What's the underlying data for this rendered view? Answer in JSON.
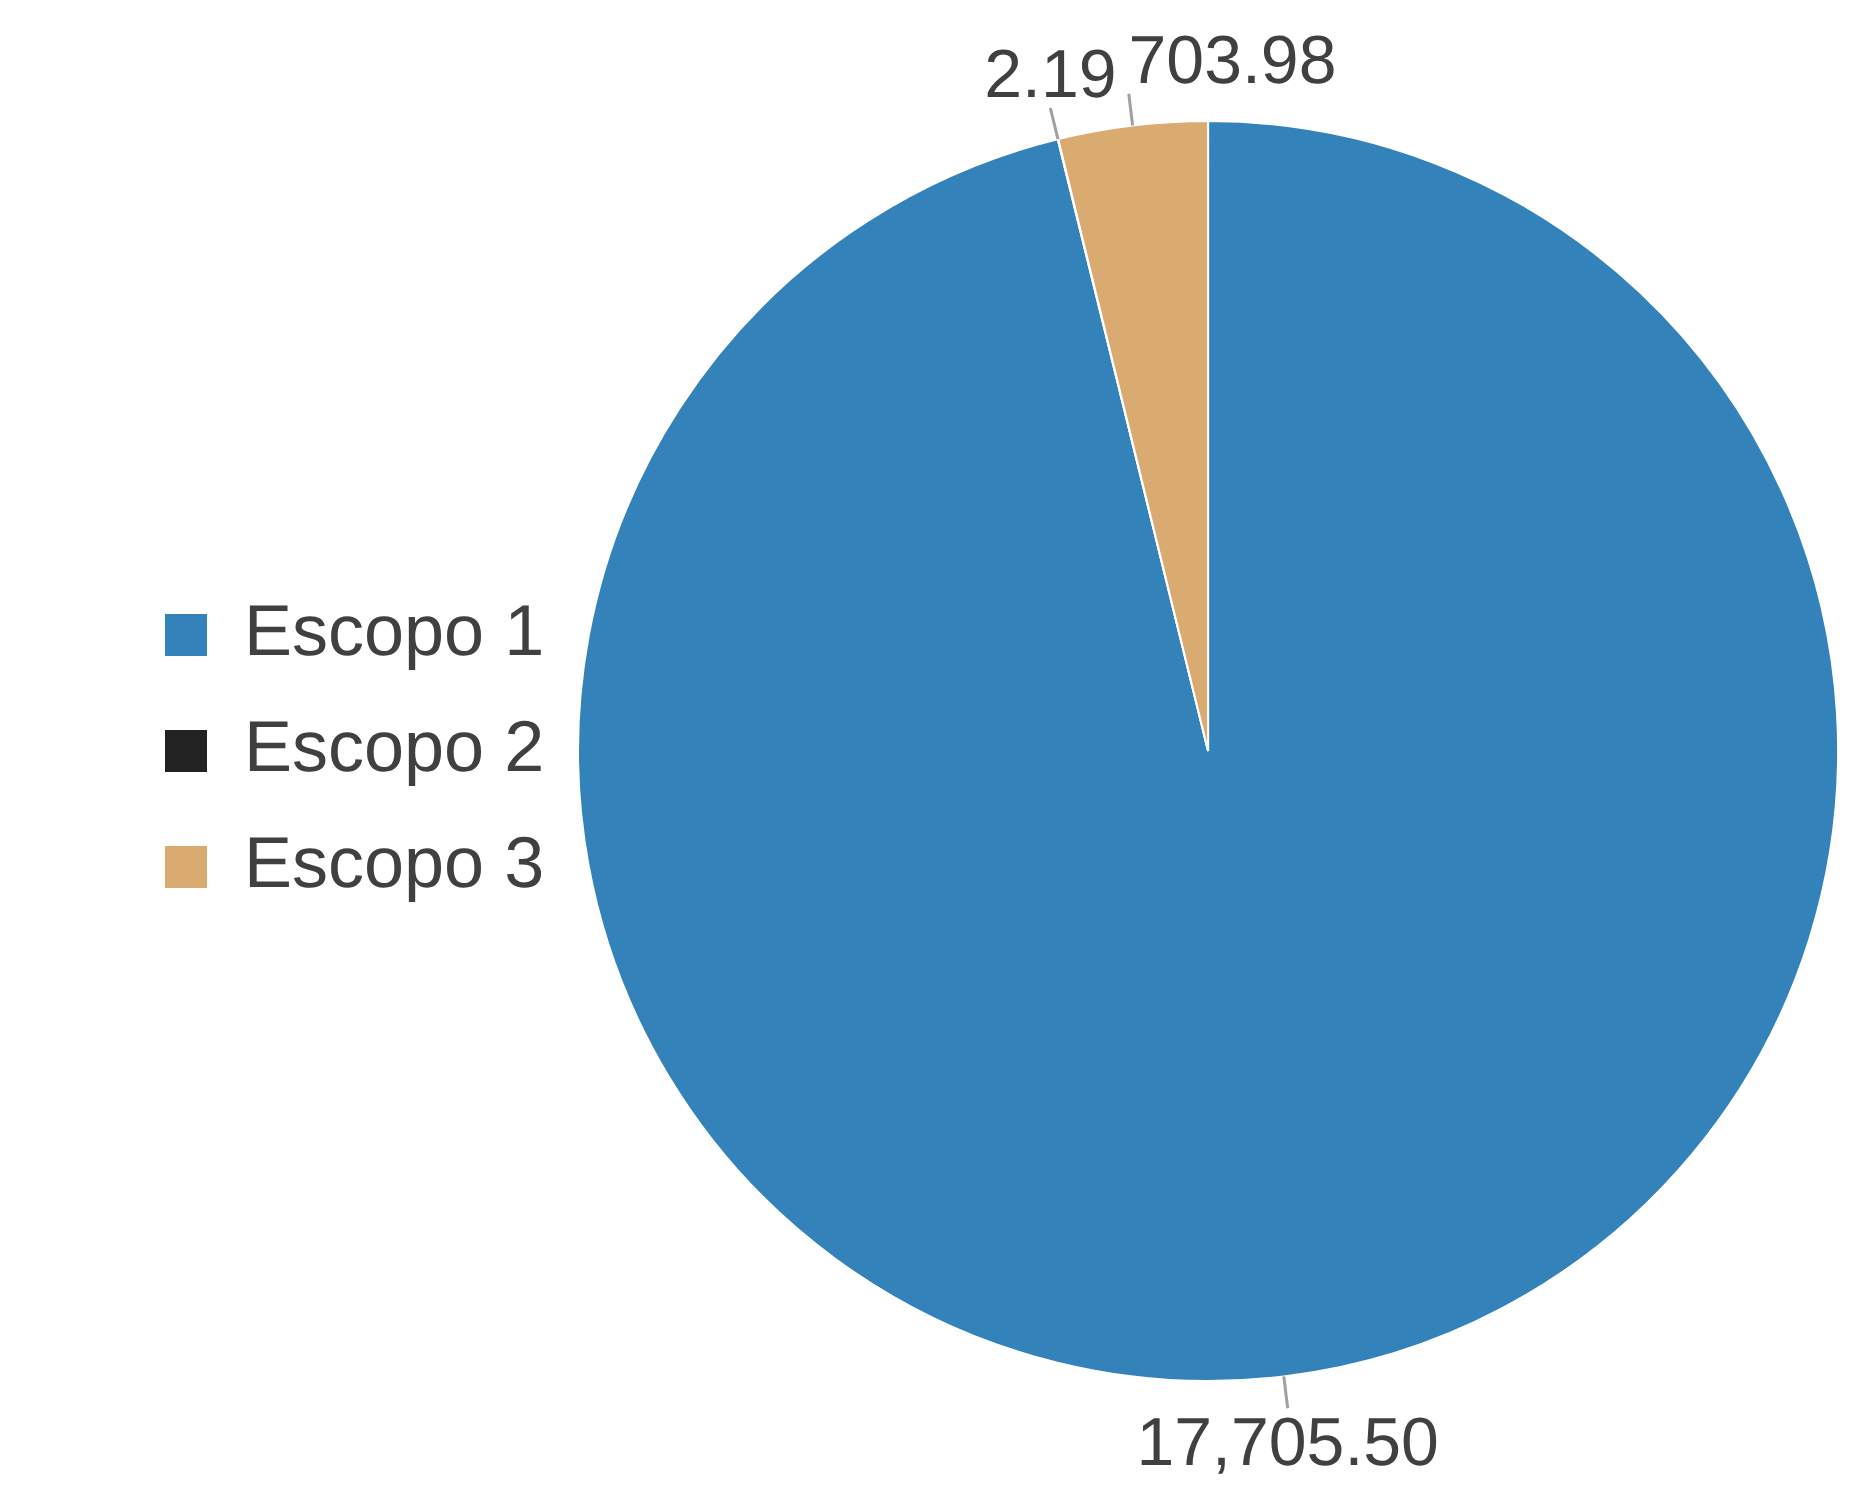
{
  "chart_data": {
    "type": "pie",
    "categories": [
      "Escopo 1",
      "Escopo 2",
      "Escopo 3"
    ],
    "values": [
      17705.5,
      2.19,
      703.98
    ],
    "value_labels": [
      "17,705.50",
      "2.19",
      "703.98"
    ],
    "colors": [
      "#3382ba",
      "#222222",
      "#d9ab70"
    ],
    "legend": "left"
  }
}
